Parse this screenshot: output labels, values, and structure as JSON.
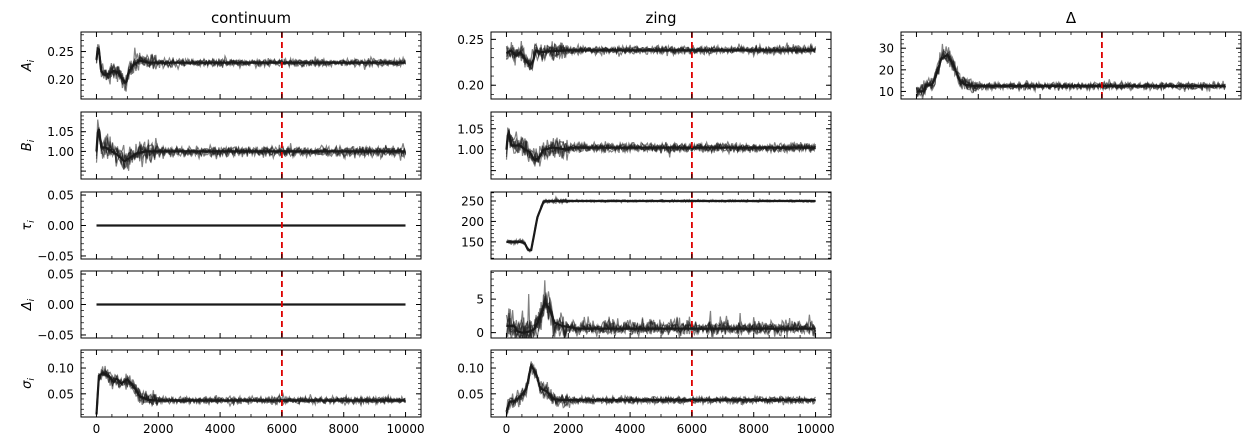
{
  "columns": [
    {
      "key": "continuum",
      "title": "continuum"
    },
    {
      "key": "zing",
      "title": "zing"
    },
    {
      "key": "delta",
      "title": "Δ"
    }
  ],
  "x_ticks": [
    "0",
    "2000",
    "4000",
    "6000",
    "8000",
    "10000"
  ],
  "vline_x": 6000,
  "colors": {
    "trace": "#1a1a1a",
    "vline": "#dd0000"
  },
  "chart_data": [
    {
      "type": "line",
      "column": "continuum",
      "row": 0,
      "ylabel": "A_i",
      "xlim": [
        -500,
        10500
      ],
      "ylim": [
        0.165,
        0.285
      ],
      "yticks": [
        0.2,
        0.25
      ],
      "ytick_labels": [
        "0.20",
        "0.25"
      ],
      "burnin_x": [
        0,
        60,
        150,
        250,
        400,
        550,
        700,
        850,
        950,
        1050,
        1200,
        1400,
        1700,
        2000
      ],
      "burnin_y": [
        0.235,
        0.265,
        0.215,
        0.208,
        0.21,
        0.215,
        0.213,
        0.2,
        0.193,
        0.215,
        0.226,
        0.234,
        0.23,
        0.23
      ],
      "conv": 0.23,
      "noise": 0.003,
      "spike": 0.04
    },
    {
      "type": "line",
      "column": "continuum",
      "row": 1,
      "ylabel": "B_i",
      "xlim": [
        -500,
        10500
      ],
      "ylim": [
        0.93,
        1.1
      ],
      "yticks": [
        0.95,
        1.0,
        1.05
      ],
      "ytick_labels": [
        "1.00",
        "1.05"
      ],
      "ytick_values_labelled": [
        1.0,
        1.05
      ],
      "burnin_x": [
        0,
        60,
        150,
        300,
        500,
        700,
        900,
        1100,
        1300,
        1600,
        2000
      ],
      "burnin_y": [
        1.0,
        1.07,
        1.01,
        1.01,
        1.0,
        0.99,
        0.975,
        0.985,
        0.995,
        1.0,
        1.0
      ],
      "conv": 1.0,
      "noise": 0.006,
      "spike": 0.05
    },
    {
      "type": "line",
      "column": "continuum",
      "row": 2,
      "ylabel": "τ_i",
      "xlim": [
        -500,
        10500
      ],
      "ylim": [
        -0.055,
        0.055
      ],
      "yticks": [
        -0.05,
        0.0,
        0.05
      ],
      "ytick_labels": [
        "−0.05",
        "0.00",
        "0.05"
      ],
      "burnin_x": [
        0,
        10000
      ],
      "burnin_y": [
        0.0,
        0.0
      ],
      "conv": 0.0,
      "noise": 0.0,
      "spike": 0
    },
    {
      "type": "line",
      "column": "continuum",
      "row": 3,
      "ylabel": "Δ_i",
      "xlim": [
        -500,
        10500
      ],
      "ylim": [
        -0.055,
        0.055
      ],
      "yticks": [
        -0.05,
        0.0,
        0.05
      ],
      "ytick_labels": [
        "−0.05",
        "0.00",
        "0.05"
      ],
      "burnin_x": [
        0,
        10000
      ],
      "burnin_y": [
        0.0,
        0.0
      ],
      "conv": 0.0,
      "noise": 0.0,
      "spike": 0
    },
    {
      "type": "line",
      "column": "continuum",
      "row": 4,
      "ylabel": "σ_i",
      "xlim": [
        -500,
        10500
      ],
      "ylim": [
        0.005,
        0.135
      ],
      "yticks": [
        0.05,
        0.1
      ],
      "ytick_labels": [
        "0.05",
        "0.10"
      ],
      "burnin_x": [
        0,
        80,
        200,
        400,
        550,
        650,
        800,
        1000,
        1200,
        1400,
        1700,
        2000
      ],
      "burnin_y": [
        0.01,
        0.085,
        0.09,
        0.085,
        0.072,
        0.08,
        0.07,
        0.078,
        0.065,
        0.045,
        0.038,
        0.037
      ],
      "conv": 0.037,
      "noise": 0.003,
      "spike": 0
    },
    {
      "type": "line",
      "column": "zing",
      "row": 0,
      "ylabel": "",
      "xlim": [
        -500,
        10500
      ],
      "ylim": [
        0.185,
        0.258
      ],
      "yticks": [
        0.2,
        0.25
      ],
      "ytick_labels": [
        "0.20",
        "0.25"
      ],
      "burnin_x": [
        0,
        150,
        300,
        450,
        600,
        750,
        850,
        950,
        1100,
        1400,
        2000
      ],
      "burnin_y": [
        0.235,
        0.238,
        0.232,
        0.236,
        0.228,
        0.222,
        0.225,
        0.238,
        0.236,
        0.237,
        0.238
      ],
      "conv": 0.238,
      "noise": 0.002,
      "spike": 0.015
    },
    {
      "type": "line",
      "column": "zing",
      "row": 1,
      "ylabel": "",
      "xlim": [
        -500,
        10500
      ],
      "ylim": [
        0.93,
        1.09
      ],
      "yticks": [
        0.95,
        1.0,
        1.05
      ],
      "ytick_labels": [
        "1.00",
        "1.05"
      ],
      "burnin_x": [
        0,
        60,
        150,
        300,
        450,
        600,
        750,
        900,
        1050,
        1200,
        1500,
        2000
      ],
      "burnin_y": [
        1.0,
        1.05,
        1.01,
        1.01,
        1.01,
        1.0,
        0.995,
        0.975,
        0.98,
        1.0,
        1.005,
        1.0
      ],
      "conv": 1.005,
      "noise": 0.005,
      "spike": 0.04
    },
    {
      "type": "line",
      "column": "zing",
      "row": 2,
      "ylabel": "",
      "xlim": [
        -500,
        10500
      ],
      "ylim": [
        108,
        272
      ],
      "yticks": [
        150,
        200,
        250
      ],
      "ytick_labels": [
        "150",
        "200",
        "250"
      ],
      "burnin_x": [
        0,
        300,
        500,
        600,
        700,
        800,
        1000,
        1200,
        1400,
        1700,
        2000
      ],
      "burnin_y": [
        150,
        150,
        150,
        145,
        130,
        130,
        210,
        248,
        250,
        250,
        250
      ],
      "conv": 250,
      "noise": 1.2,
      "spike": 0
    },
    {
      "type": "line",
      "column": "zing",
      "row": 3,
      "ylabel": "",
      "xlim": [
        -500,
        10500
      ],
      "ylim": [
        -0.8,
        9.2
      ],
      "yticks": [
        0,
        5
      ],
      "ytick_labels": [
        "0",
        "5"
      ],
      "burnin_x": [
        0,
        250,
        350,
        500,
        700,
        900,
        1100,
        1250,
        1400,
        1550,
        1800,
        2200
      ],
      "burnin_y": [
        1.0,
        1.0,
        0.2,
        0.0,
        0.1,
        0.5,
        2.5,
        4.5,
        3.5,
        1.5,
        1.0,
        0.7
      ],
      "conv": 0.6,
      "noise": 0.45,
      "spike": 3.5
    },
    {
      "type": "line",
      "column": "zing",
      "row": 4,
      "ylabel": "",
      "xlim": [
        -500,
        10500
      ],
      "ylim": [
        0.005,
        0.135
      ],
      "yticks": [
        0.05,
        0.1
      ],
      "ytick_labels": [
        "0.05",
        "0.10"
      ],
      "burnin_x": [
        0,
        100,
        250,
        450,
        650,
        800,
        950,
        1100,
        1300,
        1500,
        1800,
        2200
      ],
      "burnin_y": [
        0.015,
        0.035,
        0.035,
        0.045,
        0.06,
        0.105,
        0.09,
        0.06,
        0.055,
        0.04,
        0.038,
        0.038
      ],
      "conv": 0.038,
      "noise": 0.003,
      "spike": 0
    },
    {
      "type": "line",
      "column": "delta",
      "row": 0,
      "ylabel": "",
      "xlim": [
        -500,
        10500
      ],
      "ylim": [
        6.5,
        37.5
      ],
      "yticks": [
        10,
        20,
        30
      ],
      "ytick_labels": [
        "10",
        "20",
        "30"
      ],
      "burnin_x": [
        0,
        250,
        300,
        500,
        650,
        800,
        1000,
        1200,
        1400,
        1600,
        1900,
        2300
      ],
      "burnin_y": [
        10,
        10,
        13,
        13,
        18,
        25,
        27,
        22,
        15,
        13,
        12.5,
        12.5
      ],
      "conv": 12.5,
      "noise": 0.8,
      "spike": 4
    }
  ]
}
